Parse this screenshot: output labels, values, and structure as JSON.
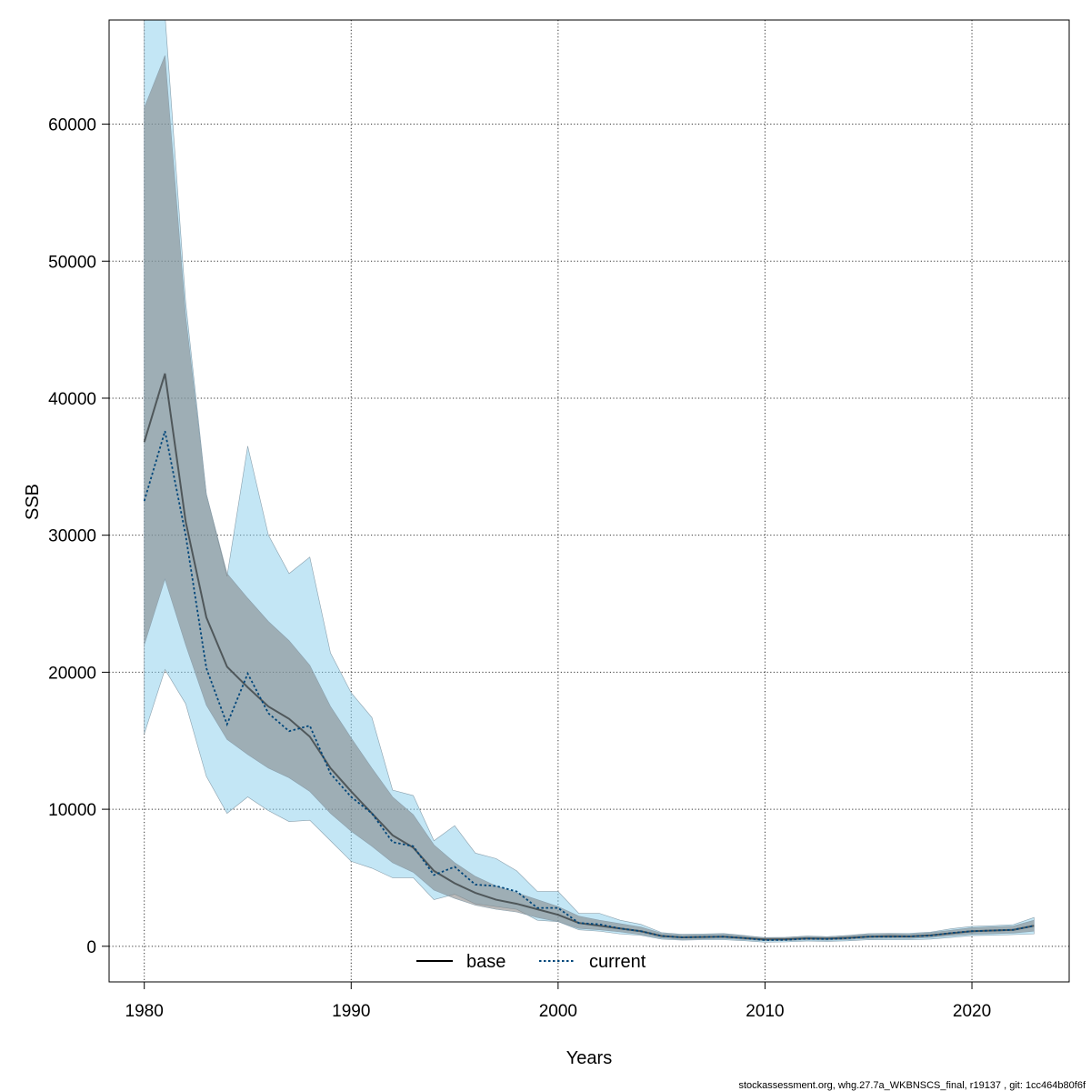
{
  "chart_data": {
    "type": "line",
    "title": "",
    "xlabel": "Years",
    "ylabel": "SSB",
    "xlim": [
      1978.3,
      2024.7
    ],
    "ylim": [
      -2600,
      67600
    ],
    "grid": true,
    "legend_position": "bottom-center",
    "x_ticks": [
      1980,
      1990,
      2000,
      2010,
      2020
    ],
    "y_ticks": [
      0,
      10000,
      20000,
      30000,
      40000,
      50000,
      60000
    ],
    "x_tick_labels": [
      "1980",
      "1990",
      "2000",
      "2010",
      "2020"
    ],
    "y_tick_labels": [
      "0",
      "10000",
      "20000",
      "30000",
      "40000",
      "50000",
      "60000"
    ],
    "x": [
      1980,
      1981,
      1982,
      1983,
      1984,
      1985,
      1986,
      1987,
      1988,
      1989,
      1990,
      1991,
      1992,
      1993,
      1994,
      1995,
      1996,
      1997,
      1998,
      1999,
      2000,
      2001,
      2002,
      2003,
      2004,
      2005,
      2006,
      2007,
      2008,
      2009,
      2010,
      2011,
      2012,
      2013,
      2014,
      2015,
      2016,
      2017,
      2018,
      2019,
      2020,
      2021,
      2022,
      2023
    ],
    "series": [
      {
        "name": "base",
        "color": "#000000",
        "line_style": "solid",
        "band_color": "#808080",
        "values": [
          36800,
          41800,
          31000,
          24000,
          20400,
          18900,
          17500,
          16600,
          15300,
          13000,
          11300,
          9700,
          8100,
          7200,
          5500,
          4600,
          3900,
          3400,
          3100,
          2700,
          2300,
          1700,
          1500,
          1300,
          1100,
          750,
          650,
          680,
          700,
          600,
          500,
          520,
          580,
          560,
          620,
          700,
          730,
          720,
          800,
          950,
          1100,
          1150,
          1200,
          1500
        ],
        "lower": [
          22000,
          26800,
          22000,
          17600,
          15100,
          14000,
          13000,
          12300,
          11300,
          9700,
          8400,
          7300,
          6100,
          5400,
          4100,
          3500,
          3000,
          2700,
          2500,
          2100,
          1800,
          1300,
          1200,
          1050,
          850,
          600,
          500,
          540,
          560,
          480,
          400,
          410,
          460,
          440,
          490,
          560,
          580,
          570,
          640,
          770,
          880,
          920,
          960,
          1100
        ],
        "upper": [
          61200,
          65000,
          46000,
          33000,
          27200,
          25400,
          23700,
          22300,
          20500,
          17500,
          15200,
          13000,
          10900,
          9600,
          7400,
          6100,
          5100,
          4400,
          3900,
          3400,
          2900,
          2200,
          1900,
          1650,
          1400,
          950,
          820,
          850,
          880,
          760,
          640,
          660,
          730,
          700,
          780,
          870,
          900,
          890,
          990,
          1170,
          1350,
          1420,
          1480,
          1900
        ]
      },
      {
        "name": "current",
        "color": "#00467a",
        "line_style": "dotted",
        "band_color": "#87ceeb",
        "values": [
          32500,
          37600,
          30000,
          20300,
          16200,
          19900,
          17000,
          15700,
          16100,
          12600,
          10900,
          9700,
          7600,
          7300,
          5200,
          5800,
          4500,
          4400,
          4000,
          2800,
          2800,
          1700,
          1600,
          1300,
          1100,
          750,
          650,
          680,
          700,
          600,
          450,
          470,
          560,
          530,
          590,
          700,
          700,
          720,
          780,
          970,
          1100,
          1150,
          1200,
          1500
        ],
        "lower": [
          15500,
          20200,
          17700,
          12400,
          9700,
          10900,
          9900,
          9100,
          9200,
          7700,
          6200,
          5700,
          5000,
          5000,
          3400,
          3800,
          3100,
          2900,
          2700,
          1900,
          1800,
          1200,
          1100,
          900,
          800,
          520,
          450,
          480,
          480,
          410,
          300,
          320,
          380,
          360,
          400,
          480,
          470,
          480,
          520,
          650,
          780,
          800,
          850,
          900
        ],
        "upper": [
          68000,
          68000,
          47000,
          33000,
          27000,
          36500,
          30000,
          27200,
          28400,
          21400,
          18500,
          16700,
          11400,
          11000,
          7700,
          8800,
          6800,
          6400,
          5500,
          4000,
          4000,
          2400,
          2400,
          1900,
          1600,
          1000,
          870,
          900,
          930,
          790,
          610,
          640,
          750,
          700,
          790,
          920,
          940,
          950,
          1030,
          1280,
          1450,
          1500,
          1580,
          2100
        ]
      }
    ]
  },
  "footer": {
    "text": "stockassessment.org, whg.27.7a_WKBNSCS_final, r19137 , git: 1cc464b80f6f"
  }
}
